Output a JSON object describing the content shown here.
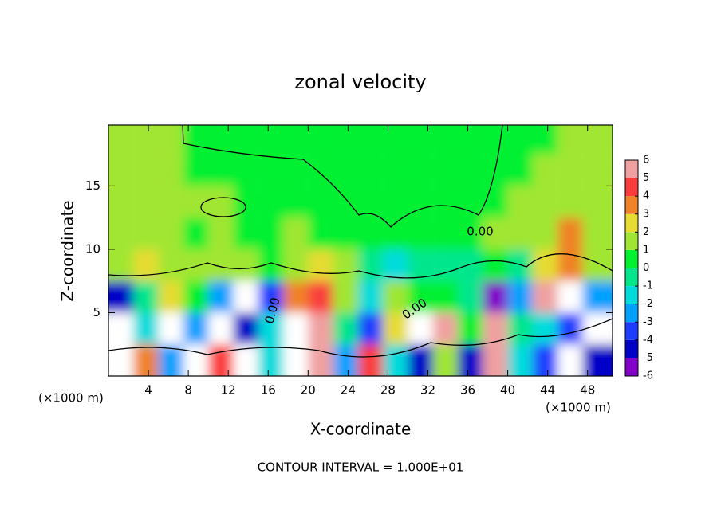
{
  "chart_data": {
    "type": "heatmap",
    "title": "zonal velocity",
    "x_label": "X-coordinate",
    "y_label": "Z-coordinate",
    "x_unit": "(×1000 m)",
    "y_unit": "(×1000 m)",
    "footer": "CONTOUR INTERVAL = 1.000E+01",
    "contour_labels": [
      "0.00",
      "0.00",
      "0.00"
    ],
    "xlim": [
      0,
      50.5
    ],
    "ylim": [
      0,
      19.8
    ],
    "xticks": [
      4,
      8,
      12,
      16,
      20,
      24,
      28,
      32,
      36,
      40,
      44,
      48
    ],
    "yticks": [
      5,
      10,
      15
    ],
    "x_step": 2.5,
    "y_step": 2.5,
    "z": [
      [
        7,
        3,
        -3,
        7,
        4,
        7,
        -2,
        7,
        5,
        -3,
        4,
        -2,
        -5,
        1,
        -5,
        5,
        -2,
        -4,
        7,
        -5
      ],
      [
        -7,
        -2,
        7,
        -3,
        7,
        -5,
        -2,
        7,
        6,
        -1,
        -4,
        2,
        7,
        5,
        0.5,
        6,
        -1,
        -2,
        -4,
        -7
      ],
      [
        -5,
        -1,
        2,
        0.5,
        -3,
        7,
        -4,
        3,
        4,
        1,
        -2,
        1,
        0.5,
        0.5,
        -1,
        -6,
        -3,
        6,
        7,
        -3
      ],
      [
        1.5,
        2,
        1.5,
        1.5,
        1.5,
        1.5,
        0.5,
        1.5,
        2,
        1.5,
        -1,
        -2,
        -1,
        -1,
        -1,
        0.5,
        -1,
        2,
        3,
        1.5
      ],
      [
        1.5,
        1.5,
        1.5,
        0.5,
        1.5,
        0.5,
        0.5,
        1.5,
        0.5,
        0.5,
        0.5,
        0.5,
        0.5,
        0.5,
        0.5,
        1.5,
        1.5,
        1.5,
        3,
        1.5
      ],
      [
        1.5,
        1.5,
        1.5,
        1.5,
        1.5,
        0.5,
        0.5,
        0.5,
        0.5,
        0.5,
        0.5,
        0.5,
        0.5,
        0.5,
        0.5,
        0.5,
        1.5,
        1.5,
        1.5,
        1.5
      ],
      [
        1.5,
        1.5,
        1.5,
        0.5,
        0.5,
        0.5,
        0.5,
        0.5,
        0.5,
        0.5,
        0.5,
        0.5,
        0.5,
        0.5,
        0.5,
        0.5,
        0.5,
        1.5,
        1.5,
        1.5
      ],
      [
        1.5,
        1.5,
        1.5,
        0.5,
        0.5,
        0.5,
        0.5,
        0.5,
        0.5,
        0.5,
        0.5,
        0.5,
        0.5,
        0.5,
        0.5,
        0.5,
        0.5,
        0.5,
        1.5,
        1.5
      ]
    ],
    "levels": [
      -6,
      -5,
      -4,
      -3,
      -2,
      -1,
      0,
      1,
      2,
      3,
      4,
      5,
      6
    ],
    "colors": [
      "#8200c8",
      "#0000c8",
      "#1e3cff",
      "#00a0ff",
      "#00dcdc",
      "#00e68c",
      "#00f032",
      "#a0e632",
      "#e6dc32",
      "#f08228",
      "#fa3c3c",
      "#f0a0a0"
    ],
    "out_of_range_color": "#ffffff"
  }
}
